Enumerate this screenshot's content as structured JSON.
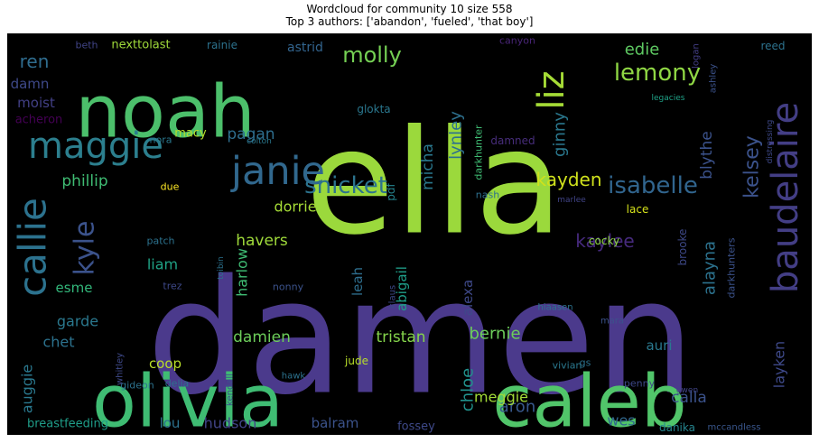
{
  "chart_data": {
    "type": "wordcloud",
    "title": "Wordcloud for community 10 size 558",
    "subtitle": "Top 3 authors: ['abandon', 'fueled', 'that boy']",
    "background": "#000000",
    "words": [
      {
        "text": "damen",
        "color": "#4b3a8c"
      },
      {
        "text": "ella",
        "color": "#9bd93c"
      },
      {
        "text": "noah",
        "color": "#4cbf6b"
      },
      {
        "text": "olivia",
        "color": "#3fbc73"
      },
      {
        "text": "caleb",
        "color": "#51c56a"
      },
      {
        "text": "baudelaire",
        "color": "#433e85"
      },
      {
        "text": "maggie",
        "color": "#2c7f8e"
      },
      {
        "text": "janie",
        "color": "#31688e"
      },
      {
        "text": "callie",
        "color": "#2c728e"
      },
      {
        "text": "liz",
        "color": "#a5db36"
      },
      {
        "text": "snicket",
        "color": "#2c738e"
      },
      {
        "text": "isabelle",
        "color": "#31658e"
      },
      {
        "text": "kyle",
        "color": "#3b528b"
      },
      {
        "text": "lemony",
        "color": "#8fd744"
      },
      {
        "text": "molly",
        "color": "#75d054"
      },
      {
        "text": "kelsey",
        "color": "#3b528b"
      },
      {
        "text": "kayden",
        "color": "#cfe11c"
      },
      {
        "text": "ren",
        "color": "#2f6c8e"
      },
      {
        "text": "edie",
        "color": "#5ec962"
      },
      {
        "text": "ginny",
        "color": "#2a788e"
      },
      {
        "text": "lynley",
        "color": "#2d708e"
      },
      {
        "text": "blythe",
        "color": "#3b528b"
      },
      {
        "text": "micha",
        "color": "#2a788e"
      },
      {
        "text": "pagan",
        "color": "#2e6e8e"
      },
      {
        "text": "damn",
        "color": "#3e4989"
      },
      {
        "text": "moist",
        "color": "#424086"
      },
      {
        "text": "acheron",
        "color": "#440154"
      },
      {
        "text": "phillip",
        "color": "#3fbc73"
      },
      {
        "text": "dorrie",
        "color": "#a5db36"
      },
      {
        "text": "kaylee",
        "color": "#462a7d"
      },
      {
        "text": "alayna",
        "color": "#2c728e"
      },
      {
        "text": "havers",
        "color": "#9fda3a"
      },
      {
        "text": "harlow",
        "color": "#3fbc73"
      },
      {
        "text": "liam",
        "color": "#20a386"
      },
      {
        "text": "leah",
        "color": "#2e6e8e"
      },
      {
        "text": "abigail",
        "color": "#1f9e89"
      },
      {
        "text": "alexa",
        "color": "#3e4989"
      },
      {
        "text": "esme",
        "color": "#32b67a"
      },
      {
        "text": "garde",
        "color": "#2a788e"
      },
      {
        "text": "chet",
        "color": "#2c728e"
      },
      {
        "text": "damien",
        "color": "#6ccd5a"
      },
      {
        "text": "tristan",
        "color": "#84d44b"
      },
      {
        "text": "bernie",
        "color": "#6ccd5a"
      },
      {
        "text": "auri",
        "color": "#2a788e"
      },
      {
        "text": "chloe",
        "color": "#21918c"
      },
      {
        "text": "aron",
        "color": "#38588c"
      },
      {
        "text": "meggie",
        "color": "#a2da37"
      },
      {
        "text": "wes",
        "color": "#31688e"
      },
      {
        "text": "calla",
        "color": "#3b528b"
      },
      {
        "text": "layken",
        "color": "#3e4989"
      },
      {
        "text": "coop",
        "color": "#b8de29"
      },
      {
        "text": "auggie",
        "color": "#2a788e"
      },
      {
        "text": "lou",
        "color": "#2c728e"
      },
      {
        "text": "hudson",
        "color": "#414487"
      },
      {
        "text": "balram",
        "color": "#3b528b"
      },
      {
        "text": "breastfeeding",
        "color": "#1f9e89"
      },
      {
        "text": "fossey",
        "color": "#3e4989"
      },
      {
        "text": "danika",
        "color": "#25848e"
      },
      {
        "text": "mccandless",
        "color": "#39568c"
      },
      {
        "text": "nexttolast",
        "color": "#9fda3a"
      },
      {
        "text": "rainie",
        "color": "#2c728e"
      },
      {
        "text": "astrid",
        "color": "#32648e"
      },
      {
        "text": "beth",
        "color": "#414487"
      },
      {
        "text": "canyon",
        "color": "#482576"
      },
      {
        "text": "reed",
        "color": "#2c728e"
      },
      {
        "text": "logan",
        "color": "#433e85"
      },
      {
        "text": "ashley",
        "color": "#3b528b"
      },
      {
        "text": "darkhunter",
        "color": "#3fbc73"
      },
      {
        "text": "glokta",
        "color": "#2a778e"
      },
      {
        "text": "macy",
        "color": "#b5de2b"
      },
      {
        "text": "colton",
        "color": "#2a788e"
      },
      {
        "text": "nora",
        "color": "#2a788e"
      },
      {
        "text": "damned",
        "color": "#472d7b"
      },
      {
        "text": "legacies",
        "color": "#1fa287"
      },
      {
        "text": "distressing",
        "color": "#3e4989"
      },
      {
        "text": "due",
        "color": "#fde725"
      },
      {
        "text": "nash",
        "color": "#2d708e"
      },
      {
        "text": "marlee",
        "color": "#414487"
      },
      {
        "text": "lace",
        "color": "#d5e21a"
      },
      {
        "text": "pdf",
        "color": "#25848e"
      },
      {
        "text": "patch",
        "color": "#2c728e"
      },
      {
        "text": "cocky",
        "color": "#8fd744"
      },
      {
        "text": "brooke",
        "color": "#3e4989"
      },
      {
        "text": "darkhunters",
        "color": "#3b528b"
      },
      {
        "text": "toibin",
        "color": "#2c728e"
      },
      {
        "text": "trez",
        "color": "#3e4989"
      },
      {
        "text": "nonny",
        "color": "#3b528b"
      },
      {
        "text": "klaus",
        "color": "#3e4989"
      },
      {
        "text": "hiaasen",
        "color": "#2c728e"
      },
      {
        "text": "mara",
        "color": "#3b528b"
      },
      {
        "text": "gideon",
        "color": "#2c728e"
      },
      {
        "text": "vivian",
        "color": "#2a788e"
      },
      {
        "text": "whitley",
        "color": "#3e4989"
      },
      {
        "text": "kendall",
        "color": "#3b528b"
      },
      {
        "text": "jude",
        "color": "#b8de29"
      },
      {
        "text": "gs",
        "color": "#2c728e"
      },
      {
        "text": "hawk",
        "color": "#2c728e"
      },
      {
        "text": "delia",
        "color": "#2c728e"
      },
      {
        "text": "penny",
        "color": "#3e4989"
      },
      {
        "text": "gwen",
        "color": "#414487"
      }
    ]
  }
}
